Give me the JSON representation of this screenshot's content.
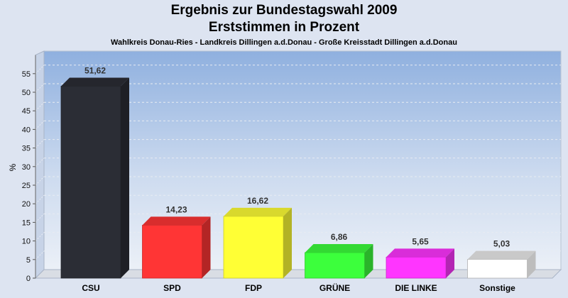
{
  "chart_data": {
    "type": "bar",
    "title": "Ergebnis zur Bundestagswahl 2009",
    "subtitle": "Erststimmen in Prozent",
    "subsubtitle": "Wahlkreis Donau-Ries - Landkreis Dillingen a.d.Donau - Große Kreisstadt Dillingen a.d.Donau",
    "ylabel": "%",
    "xlabel": "",
    "ylim": [
      0,
      60
    ],
    "yticks": [
      0,
      5,
      10,
      15,
      20,
      25,
      30,
      35,
      40,
      45,
      50,
      55
    ],
    "grid": true,
    "categories": [
      "CSU",
      "SPD",
      "FDP",
      "GRÜNE",
      "DIE LINKE",
      "Sonstige"
    ],
    "values": [
      51.62,
      14.23,
      16.62,
      6.86,
      5.65,
      5.03
    ],
    "value_labels": [
      "51,62",
      "14,23",
      "16,62",
      "6,86",
      "5,65",
      "5,03"
    ],
    "colors": [
      "#2b2d35",
      "#ff3535",
      "#ffff35",
      "#3cff3c",
      "#ff35ff",
      "#ffffff"
    ]
  }
}
